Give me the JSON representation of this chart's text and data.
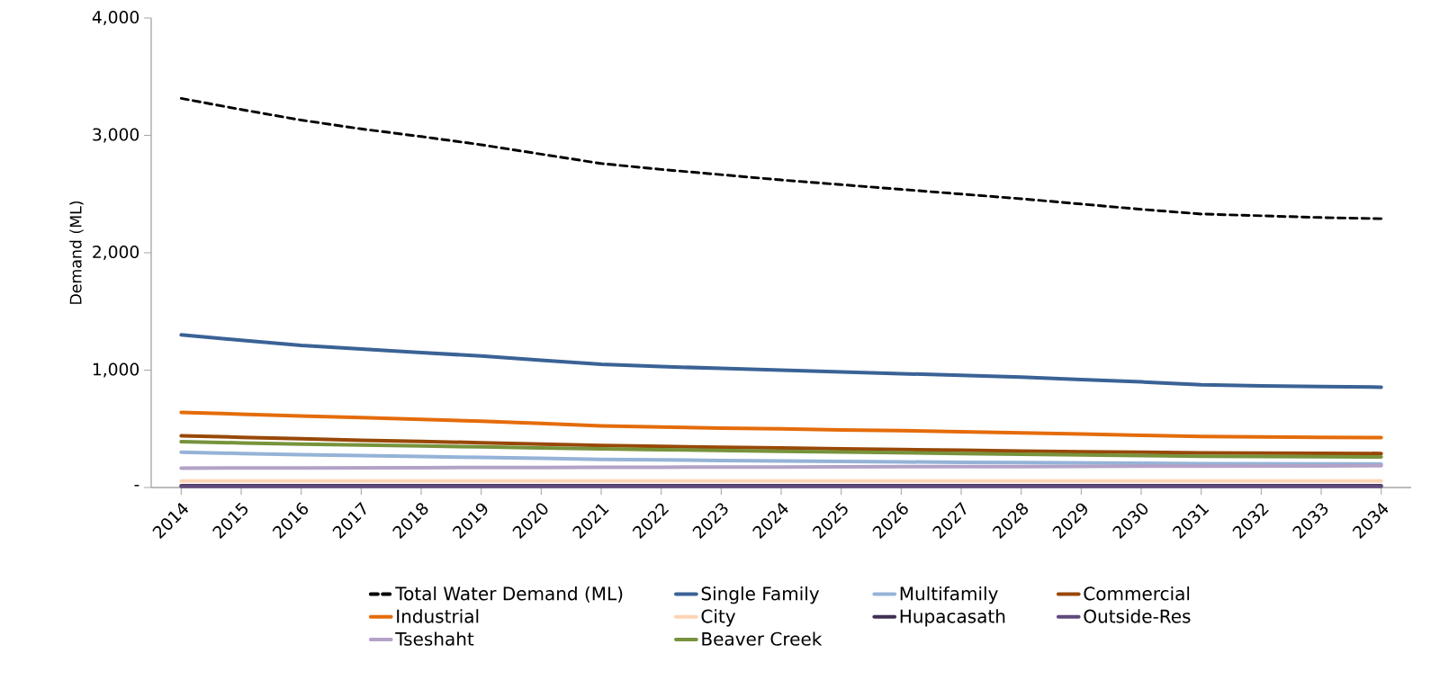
{
  "chart_data": {
    "type": "line",
    "ylabel": "Demand (ML)",
    "x": [
      2014,
      2015,
      2016,
      2017,
      2018,
      2019,
      2020,
      2021,
      2022,
      2023,
      2024,
      2025,
      2026,
      2027,
      2028,
      2029,
      2030,
      2031,
      2032,
      2033,
      2034
    ],
    "xlim": [
      2013.5,
      2034.5
    ],
    "xticks": [
      2014,
      2015,
      2016,
      2017,
      2018,
      2019,
      2020,
      2021,
      2022,
      2023,
      2024,
      2025,
      2026,
      2027,
      2028,
      2029,
      2030,
      2031,
      2032,
      2033,
      2034
    ],
    "ylim": [
      0,
      4000
    ],
    "yticks": [
      {
        "value": 0,
        "label": "-"
      },
      {
        "value": 1000,
        "label": "1,000"
      },
      {
        "value": 2000,
        "label": "2,000"
      },
      {
        "value": 3000,
        "label": "3,000"
      },
      {
        "value": 4000,
        "label": "4,000"
      }
    ],
    "legend": "bottom",
    "marker": "none",
    "series": [
      {
        "name": "Total Water Demand (ML)",
        "color": "#000000",
        "line_style": "dashed",
        "values": [
          3315,
          3220,
          3130,
          3055,
          2990,
          2920,
          2840,
          2760,
          2710,
          2665,
          2620,
          2580,
          2540,
          2500,
          2460,
          2415,
          2370,
          2330,
          2315,
          2300,
          2290
        ]
      },
      {
        "name": "Single Family",
        "color": "#3a6296",
        "line_style": "solid",
        "values": [
          1300,
          1255,
          1210,
          1180,
          1150,
          1120,
          1085,
          1050,
          1030,
          1015,
          1000,
          985,
          970,
          955,
          940,
          920,
          900,
          875,
          865,
          860,
          855
        ]
      },
      {
        "name": "Multifamily",
        "color": "#95b3d7",
        "line_style": "solid",
        "values": [
          300,
          290,
          280,
          272,
          264,
          256,
          248,
          240,
          235,
          230,
          226,
          222,
          218,
          215,
          212,
          209,
          206,
          203,
          202,
          201,
          200
        ]
      },
      {
        "name": "Commercial",
        "color": "#984807",
        "line_style": "solid",
        "values": [
          440,
          428,
          415,
          403,
          392,
          382,
          370,
          358,
          350,
          343,
          337,
          330,
          323,
          317,
          311,
          305,
          300,
          295,
          293,
          291,
          290
        ]
      },
      {
        "name": "Industrial",
        "color": "#e46c0a",
        "line_style": "solid",
        "values": [
          640,
          625,
          610,
          595,
          580,
          565,
          545,
          525,
          515,
          505,
          500,
          490,
          485,
          475,
          465,
          455,
          445,
          435,
          430,
          428,
          425
        ]
      },
      {
        "name": "City",
        "color": "#fcd5b5",
        "line_style": "solid",
        "values": [
          55,
          55,
          55,
          55,
          55,
          55,
          55,
          55,
          55,
          55,
          55,
          55,
          55,
          55,
          55,
          55,
          55,
          55,
          55,
          55,
          55
        ]
      },
      {
        "name": "Hupacasath",
        "color": "#403152",
        "line_style": "solid",
        "values": [
          15,
          15,
          15,
          15,
          15,
          15,
          15,
          15,
          15,
          15,
          15,
          15,
          15,
          15,
          15,
          15,
          15,
          15,
          15,
          15,
          15
        ]
      },
      {
        "name": "Outside-Res",
        "color": "#604a7b",
        "line_style": "solid",
        "values": [
          10,
          10,
          10,
          10,
          10,
          10,
          10,
          10,
          10,
          10,
          10,
          10,
          10,
          10,
          10,
          10,
          10,
          10,
          10,
          10,
          10
        ]
      },
      {
        "name": "Tseshaht",
        "color": "#b3a2c7",
        "line_style": "solid",
        "values": [
          165,
          166,
          167,
          168,
          169,
          170,
          171,
          172,
          173,
          174,
          175,
          176,
          177,
          178,
          179,
          180,
          181,
          182,
          183,
          184,
          185
        ]
      },
      {
        "name": "Beaver Creek",
        "color": "#77933c",
        "line_style": "solid",
        "values": [
          390,
          380,
          370,
          362,
          354,
          346,
          338,
          330,
          322,
          315,
          308,
          302,
          296,
          290,
          284,
          278,
          272,
          266,
          264,
          262,
          260
        ]
      }
    ]
  }
}
